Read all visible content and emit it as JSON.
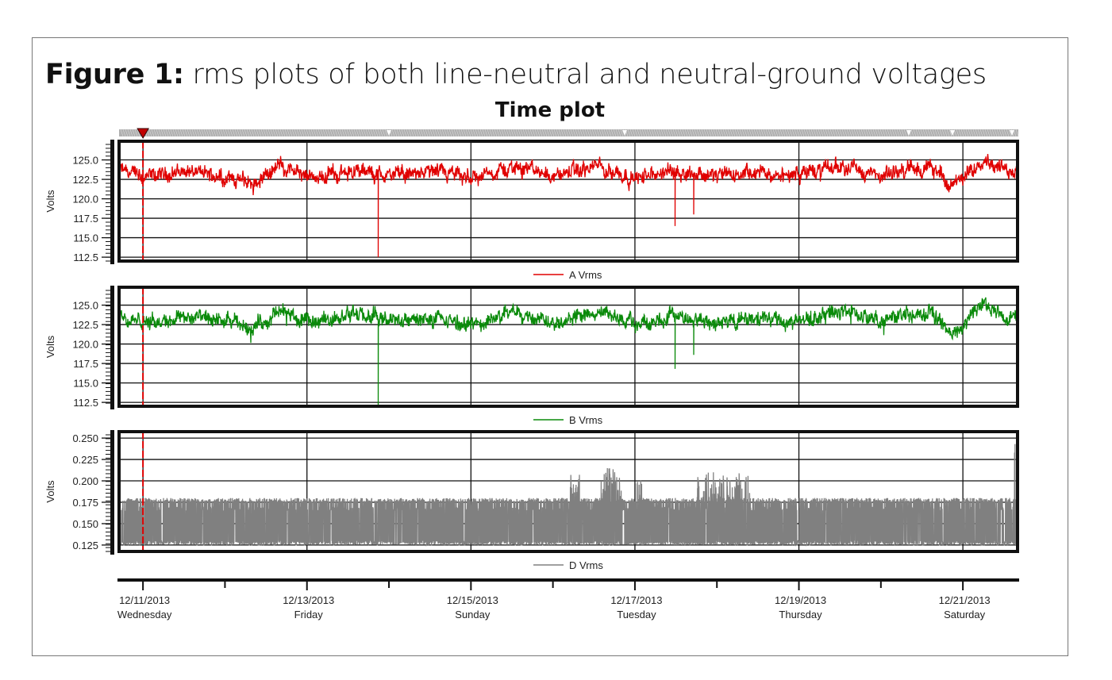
{
  "figure": {
    "title_bold": "Figure 1:",
    "title_rest": " rms plots of both line-neutral and neutral-ground voltages",
    "subtitle": "Time plot"
  },
  "chart_data": [
    {
      "type": "line",
      "ylabel": "Volts",
      "yticks": [
        "125.0",
        "122.5",
        "120.0",
        "117.5",
        "115.0",
        "112.5"
      ],
      "ylim": [
        112.0,
        127.4
      ],
      "xlim": [
        "2013-12-10T17:00",
        "2013-12-21T16:00"
      ],
      "grid": true,
      "legend": "bottom",
      "series": [
        {
          "name": "A Vrms",
          "color": "#e00000",
          "baseline": [
            [
              "2013-12-10T17:00",
              123.8
            ],
            [
              "2013-12-11T00:00",
              122.6
            ],
            [
              "2013-12-11T12:00",
              123.6
            ],
            [
              "2013-12-12T00:00",
              122.8
            ],
            [
              "2013-12-12T08:00",
              122.0
            ],
            [
              "2013-12-12T17:00",
              124.6
            ],
            [
              "2013-12-13T00:00",
              122.4
            ],
            [
              "2013-12-13T12:00",
              123.6
            ],
            [
              "2013-12-14T00:00",
              123.0
            ],
            [
              "2013-12-14T12:00",
              123.4
            ],
            [
              "2013-12-15T00:00",
              122.6
            ],
            [
              "2013-12-15T14:00",
              124.2
            ],
            [
              "2013-12-16T00:00",
              123.0
            ],
            [
              "2013-12-16T14:00",
              124.2
            ],
            [
              "2013-12-17T00:00",
              122.6
            ],
            [
              "2013-12-17T12:00",
              123.6
            ],
            [
              "2013-12-18T00:00",
              123.0
            ],
            [
              "2013-12-18T12:00",
              123.2
            ],
            [
              "2013-12-19T00:00",
              123.2
            ],
            [
              "2013-12-19T14:00",
              124.4
            ],
            [
              "2013-12-20T00:00",
              122.6
            ],
            [
              "2013-12-20T07:00",
              124.0
            ],
            [
              "2013-12-20T16:00",
              123.8
            ],
            [
              "2013-12-20T21:00",
              121.6
            ],
            [
              "2013-12-21T00:00",
              122.4
            ],
            [
              "2013-12-21T06:00",
              125.4
            ],
            [
              "2013-12-21T13:00",
              123.4
            ],
            [
              "2013-12-21T16:00",
              124.2
            ]
          ],
          "dips": [
            [
              "2013-12-13T20:50",
              112.5
            ],
            [
              "2013-12-17T11:45",
              116.5
            ],
            [
              "2013-12-17T17:15",
              118.0
            ]
          ]
        }
      ]
    },
    {
      "type": "line",
      "ylabel": "Volts",
      "yticks": [
        "125.0",
        "122.5",
        "120.0",
        "117.5",
        "115.0",
        "112.5"
      ],
      "ylim": [
        112.0,
        127.3
      ],
      "xlim": [
        "2013-12-10T17:00",
        "2013-12-21T16:00"
      ],
      "grid": true,
      "legend": "bottom",
      "series": [
        {
          "name": "B Vrms",
          "color": "#0a8a0a",
          "baseline": [
            [
              "2013-12-10T17:00",
              123.6
            ],
            [
              "2013-12-11T00:00",
              122.6
            ],
            [
              "2013-12-11T12:00",
              123.6
            ],
            [
              "2013-12-12T00:00",
              122.8
            ],
            [
              "2013-12-12T08:00",
              122.2
            ],
            [
              "2013-12-12T17:00",
              124.2
            ],
            [
              "2013-12-13T00:00",
              122.6
            ],
            [
              "2013-12-13T12:00",
              123.8
            ],
            [
              "2013-12-14T00:00",
              123.0
            ],
            [
              "2013-12-14T12:00",
              123.2
            ],
            [
              "2013-12-15T00:00",
              122.4
            ],
            [
              "2013-12-15T14:00",
              124.2
            ],
            [
              "2013-12-16T00:00",
              123.0
            ],
            [
              "2013-12-16T14:00",
              124.0
            ],
            [
              "2013-12-17T00:00",
              122.6
            ],
            [
              "2013-12-17T12:00",
              123.6
            ],
            [
              "2013-12-18T00:00",
              122.8
            ],
            [
              "2013-12-18T12:00",
              123.2
            ],
            [
              "2013-12-19T00:00",
              123.0
            ],
            [
              "2013-12-19T14:00",
              124.4
            ],
            [
              "2013-12-20T00:00",
              122.6
            ],
            [
              "2013-12-20T07:00",
              124.0
            ],
            [
              "2013-12-20T16:00",
              123.8
            ],
            [
              "2013-12-20T21:00",
              121.0
            ],
            [
              "2013-12-21T00:00",
              122.4
            ],
            [
              "2013-12-21T06:00",
              125.2
            ],
            [
              "2013-12-21T13:00",
              123.2
            ],
            [
              "2013-12-21T16:00",
              124.0
            ]
          ],
          "dips": [
            [
              "2013-12-13T20:50",
              112.2
            ],
            [
              "2013-12-17T11:45",
              116.8
            ],
            [
              "2013-12-17T17:15",
              118.6
            ]
          ]
        }
      ]
    },
    {
      "type": "line",
      "ylabel": "Volts",
      "yticks": [
        "0.250",
        "0.225",
        "0.200",
        "0.175",
        "0.150",
        "0.125"
      ],
      "ylim": [
        0.1175,
        0.2575
      ],
      "xlim": [
        "2013-12-10T17:00",
        "2013-12-21T16:00"
      ],
      "grid": true,
      "legend": "bottom",
      "series": [
        {
          "name": "D Vrms",
          "color": "#808080",
          "band_low": 0.13,
          "band_high": 0.175,
          "bursts": [
            [
              "2013-12-16T05:00",
              "2013-12-16T08:00",
              0.212
            ],
            [
              "2013-12-16T14:00",
              "2013-12-16T20:00",
              0.215
            ],
            [
              "2013-12-17T00:00",
              "2013-12-17T02:00",
              0.205
            ],
            [
              "2013-12-17T18:00",
              "2013-12-18T10:00",
              0.21
            ]
          ],
          "end_spike": [
            "2013-12-21T16:00",
            0.243
          ]
        }
      ]
    }
  ],
  "x_axis": {
    "ticks": [
      {
        "date": "12/11/2013",
        "day": "Wednesday",
        "t": "2013-12-11T00:00"
      },
      {
        "date": "12/13/2013",
        "day": "Friday",
        "t": "2013-12-13T00:00"
      },
      {
        "date": "12/15/2013",
        "day": "Sunday",
        "t": "2013-12-15T00:00"
      },
      {
        "date": "12/17/2013",
        "day": "Tuesday",
        "t": "2013-12-17T00:00"
      },
      {
        "date": "12/19/2013",
        "day": "Thursday",
        "t": "2013-12-19T00:00"
      },
      {
        "date": "12/21/2013",
        "day": "Saturday",
        "t": "2013-12-21T00:00"
      }
    ],
    "minor_ticks": [
      "2013-12-12T00:00",
      "2013-12-14T00:00",
      "2013-12-16T00:00",
      "2013-12-18T00:00",
      "2013-12-20T00:00"
    ]
  },
  "cursor": {
    "t": "2013-12-11T00:00",
    "color": "#e00000"
  }
}
